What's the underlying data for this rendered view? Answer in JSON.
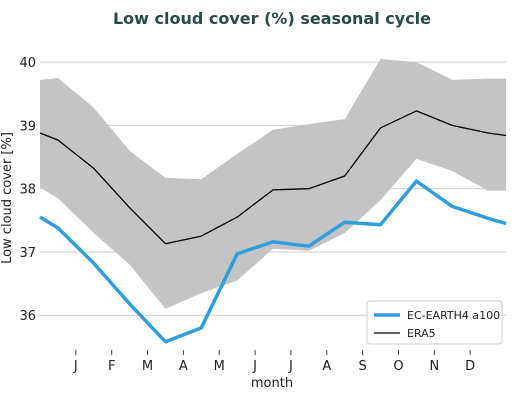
{
  "chart_data": {
    "type": "line",
    "title": "Low cloud cover (%) seasonal cycle",
    "xlabel": "month",
    "ylabel": "Low cloud cover [%]",
    "categories": [
      "J",
      "F",
      "M",
      "A",
      "M",
      "J",
      "J",
      "A",
      "S",
      "O",
      "N",
      "D"
    ],
    "x_domain": [
      0,
      13
    ],
    "ylim": [
      35.45,
      40.35
    ],
    "yticks": [
      36,
      37,
      38,
      39,
      40
    ],
    "grid": "y",
    "legend_position": "bottom-right",
    "series": [
      {
        "name": "EC-EARTH4 a100",
        "color": "#2e9fdc",
        "x": [
          0,
          0.5,
          1.5,
          2.5,
          3.5,
          4.5,
          5.5,
          6.5,
          7.5,
          8.5,
          9.5,
          10.5,
          11.5,
          12.5,
          13
        ],
        "values": [
          37.55,
          37.38,
          36.82,
          36.18,
          35.58,
          35.8,
          36.97,
          37.16,
          37.09,
          37.47,
          37.43,
          38.12,
          37.72,
          37.53,
          37.45
        ]
      },
      {
        "name": "ERA5",
        "color": "#000000",
        "x": [
          0,
          0.5,
          1.5,
          2.5,
          3.5,
          4.5,
          5.5,
          6.5,
          7.5,
          8.5,
          9.5,
          10.5,
          11.5,
          12.5,
          13
        ],
        "values": [
          38.88,
          38.77,
          38.32,
          37.7,
          37.13,
          37.25,
          37.55,
          37.98,
          38.0,
          38.2,
          38.96,
          39.23,
          39.0,
          38.88,
          38.84
        ]
      }
    ],
    "band": {
      "color": "#c4c4c4",
      "x": [
        0,
        0.5,
        1.5,
        2.5,
        3.5,
        4.5,
        5.5,
        6.5,
        7.5,
        8.5,
        9.5,
        10.5,
        11.5,
        12.5,
        13
      ],
      "upper": [
        39.72,
        39.75,
        39.28,
        38.6,
        38.17,
        38.15,
        38.55,
        38.93,
        39.02,
        39.1,
        40.05,
        40.0,
        39.72,
        39.74,
        39.74
      ],
      "lower": [
        38.02,
        37.85,
        37.3,
        36.8,
        36.1,
        36.35,
        36.55,
        37.05,
        37.02,
        37.3,
        37.82,
        38.47,
        38.28,
        37.97,
        37.97
      ]
    }
  }
}
